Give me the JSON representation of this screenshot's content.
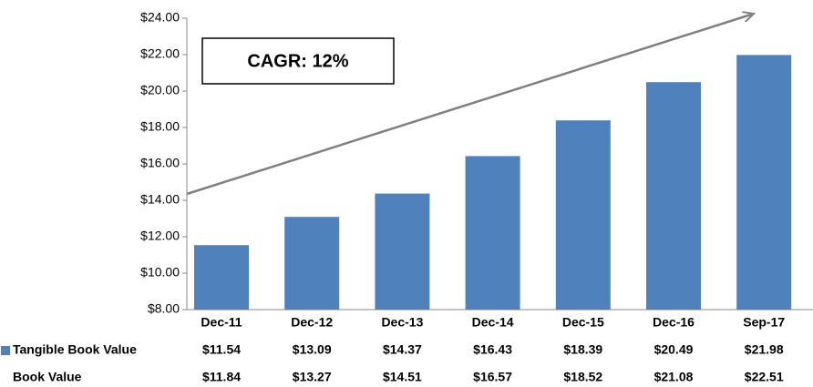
{
  "chart_data": {
    "type": "bar",
    "annotation": "CAGR:  12%",
    "categories": [
      "Dec-11",
      "Dec-12",
      "Dec-13",
      "Dec-14",
      "Dec-15",
      "Dec-16",
      "Sep-17"
    ],
    "series": [
      {
        "name": "Tangible Book Value",
        "color": "#4f81bd",
        "values": [
          11.54,
          13.09,
          14.37,
          16.43,
          18.39,
          20.49,
          21.98
        ],
        "value_labels": [
          "$11.54",
          "$13.09",
          "$14.37",
          "$16.43",
          "$18.39",
          "$20.49",
          "$21.98"
        ]
      },
      {
        "name": "Book Value",
        "values": [
          11.84,
          13.27,
          14.51,
          16.57,
          18.52,
          21.08,
          22.51
        ],
        "value_labels": [
          "$11.84",
          "$13.27",
          "$14.51",
          "$16.57",
          "$18.52",
          "$21.08",
          "$22.51"
        ]
      }
    ],
    "ylim": [
      8,
      24
    ],
    "yticks": [
      {
        "value": 8,
        "label": "$8.00"
      },
      {
        "value": 10,
        "label": "$10.00"
      },
      {
        "value": 12,
        "label": "$12.00"
      },
      {
        "value": 14,
        "label": "$14.00"
      },
      {
        "value": 16,
        "label": "$16.00"
      },
      {
        "value": 18,
        "label": "$18.00"
      },
      {
        "value": 20,
        "label": "$20.00"
      },
      {
        "value": 22,
        "label": "$22.00"
      },
      {
        "value": 24,
        "label": "$24.00"
      }
    ]
  }
}
